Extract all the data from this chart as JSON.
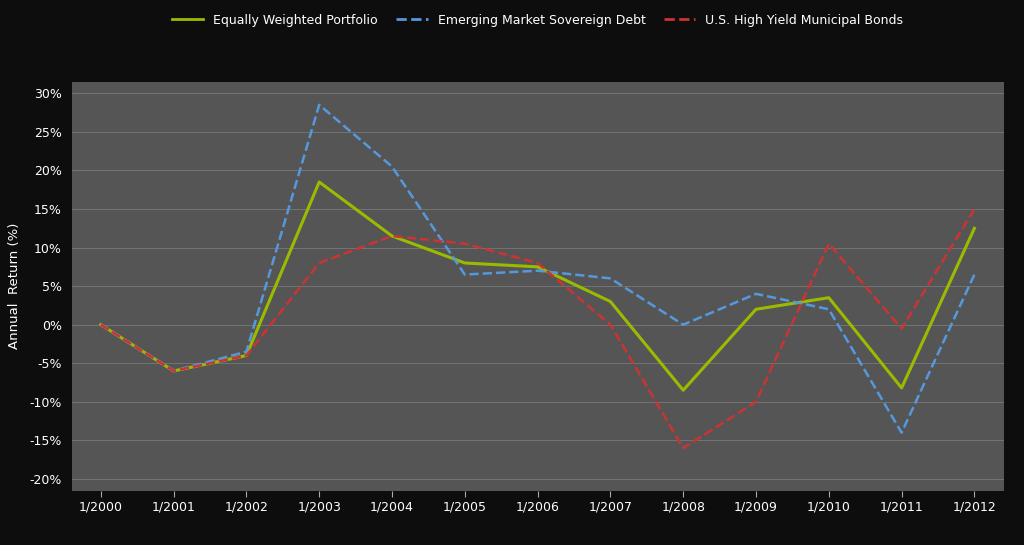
{
  "outer_bg_color": "#0d0d0d",
  "plot_bg_color": "#555555",
  "grid_color": "#787878",
  "ylabel": "Annual  Return (%)",
  "xlabels": [
    "1/2000",
    "1/2001",
    "1/2002",
    "1/2003",
    "1/2004",
    "1/2005",
    "1/2006",
    "1/2007",
    "1/2008",
    "1/2009",
    "1/2010",
    "1/2011",
    "1/2012"
  ],
  "yticks": [
    -0.2,
    -0.15,
    -0.1,
    -0.05,
    0.0,
    0.05,
    0.1,
    0.15,
    0.2,
    0.25,
    0.3
  ],
  "ytick_labels": [
    "-20%",
    "-15%",
    "-10%",
    "-5%",
    "0%",
    "5%",
    "10%",
    "15%",
    "20%",
    "25%",
    "30%"
  ],
  "series": [
    {
      "label": "Equally Weighted Portfolio",
      "color": "#99bb00",
      "linestyle": "-",
      "linewidth": 2.2,
      "values": [
        0.0,
        -0.06,
        -0.04,
        0.185,
        0.115,
        0.08,
        0.075,
        0.03,
        -0.085,
        0.02,
        0.035,
        -0.082,
        0.125
      ]
    },
    {
      "label": "Emerging Market Sovereign Debt",
      "color": "#5599dd",
      "linestyle": "--",
      "linewidth": 1.8,
      "values": [
        0.0,
        -0.06,
        -0.035,
        0.285,
        0.205,
        0.065,
        0.07,
        0.06,
        0.0,
        0.04,
        0.02,
        -0.14,
        0.065
      ]
    },
    {
      "label": "U.S. High Yield Municipal Bonds",
      "color": "#cc3333",
      "linestyle": "--",
      "linewidth": 1.8,
      "values": [
        0.0,
        -0.06,
        -0.04,
        0.08,
        0.115,
        0.105,
        0.08,
        0.0,
        -0.16,
        -0.1,
        0.105,
        -0.005,
        0.15
      ]
    }
  ],
  "legend_bg_color": "#0d0d0d",
  "tick_color": "#aaaaaa",
  "label_fontsize": 9,
  "legend_fontsize": 9
}
